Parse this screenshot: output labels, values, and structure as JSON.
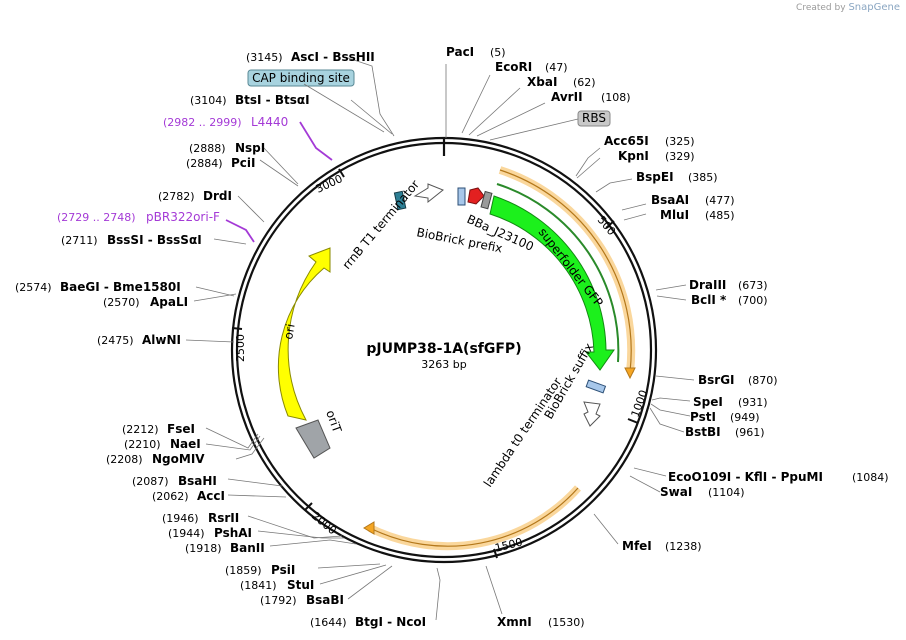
{
  "watermark": {
    "prefix": "Created by",
    "brand": "SnapGene"
  },
  "plasmid": {
    "name": "pJUMP38-1A(sfGFP)",
    "size": "3263 bp",
    "length": 3263
  },
  "ticks": [
    "500",
    "1000",
    "1500",
    "2000",
    "2500",
    "3000"
  ],
  "sites": [
    {
      "name": "PacI",
      "pos": "(5)"
    },
    {
      "name": "EcoRI",
      "pos": "(47)"
    },
    {
      "name": "XbaI",
      "pos": "(62)"
    },
    {
      "name": "AvrII",
      "pos": "(108)"
    },
    {
      "name": "Acc65I",
      "pos": "(325)"
    },
    {
      "name": "KpnI",
      "pos": "(329)"
    },
    {
      "name": "BspEI",
      "pos": "(385)"
    },
    {
      "name": "BsaAI",
      "pos": "(477)"
    },
    {
      "name": "MluI",
      "pos": "(485)"
    },
    {
      "name": "DraIII",
      "pos": "(673)"
    },
    {
      "name": "BclI *",
      "pos": "(700)"
    },
    {
      "name": "BsrGI",
      "pos": "(870)"
    },
    {
      "name": "SpeI",
      "pos": "(931)"
    },
    {
      "name": "PstI",
      "pos": "(949)"
    },
    {
      "name": "BstBI",
      "pos": "(961)"
    },
    {
      "name": "EcoO109I - KflI - PpuMI",
      "pos": "(1084)"
    },
    {
      "name": "SwaI",
      "pos": "(1104)"
    },
    {
      "name": "MfeI",
      "pos": "(1238)"
    },
    {
      "name": "XmnI",
      "pos": "(1530)"
    },
    {
      "name": "BtgI - NcoI",
      "pos": "(1644)"
    },
    {
      "name": "BsaBI",
      "pos": "(1792)"
    },
    {
      "name": "StuI",
      "pos": "(1841)"
    },
    {
      "name": "PsiI",
      "pos": "(1859)"
    },
    {
      "name": "BanII",
      "pos": "(1918)"
    },
    {
      "name": "PshAI",
      "pos": "(1944)"
    },
    {
      "name": "RsrII",
      "pos": "(1946)"
    },
    {
      "name": "AccI",
      "pos": "(2062)"
    },
    {
      "name": "BsaHI",
      "pos": "(2087)"
    },
    {
      "name": "NgoMIV",
      "pos": "(2208)"
    },
    {
      "name": "NaeI",
      "pos": "(2210)"
    },
    {
      "name": "FseI",
      "pos": "(2212)"
    },
    {
      "name": "AlwNI",
      "pos": "(2475)"
    },
    {
      "name": "ApaLI",
      "pos": "(2570)"
    },
    {
      "name": "BaeGI - Bme1580I",
      "pos": "(2574)"
    },
    {
      "name": "BssSI - BssSαI",
      "pos": "(2711)"
    },
    {
      "name": "DrdI",
      "pos": "(2782)"
    },
    {
      "name": "PciI",
      "pos": "(2884)"
    },
    {
      "name": "NspI",
      "pos": "(2888)"
    },
    {
      "name": "BtsI - BtsαI",
      "pos": "(3104)"
    },
    {
      "name": "AscI - BssHII",
      "pos": "(3145)"
    }
  ],
  "primers": [
    {
      "name": "L4440",
      "pos": "(2982 .. 2999)"
    },
    {
      "name": "pBR322ori-F",
      "pos": "(2729 .. 2748)"
    }
  ],
  "boxed_labels": {
    "cap": "CAP binding site",
    "rbs": "RBS"
  },
  "features": {
    "sfgfp": "superfolder GFP",
    "promoter": "BBa_J23100",
    "prefix": "BioBrick prefix",
    "rrnb": "rrnB T1 terminator",
    "suffix": "BioBrick suffix",
    "lambda": "lambda t0 terminator",
    "ori": "ori",
    "orit": "oriT"
  },
  "colors": {
    "gfp": "#1cf01c",
    "ori": "#ffff00",
    "orit": "#a0a4a8",
    "orf": "#f5a623",
    "cap_box": "#a8d3df",
    "rbs_box": "#c8c8c8",
    "primer": "#a43ad6",
    "promoter": "#e32020",
    "terminator_teal": "#2d7f95",
    "biobrick": "#a7c7ea"
  }
}
